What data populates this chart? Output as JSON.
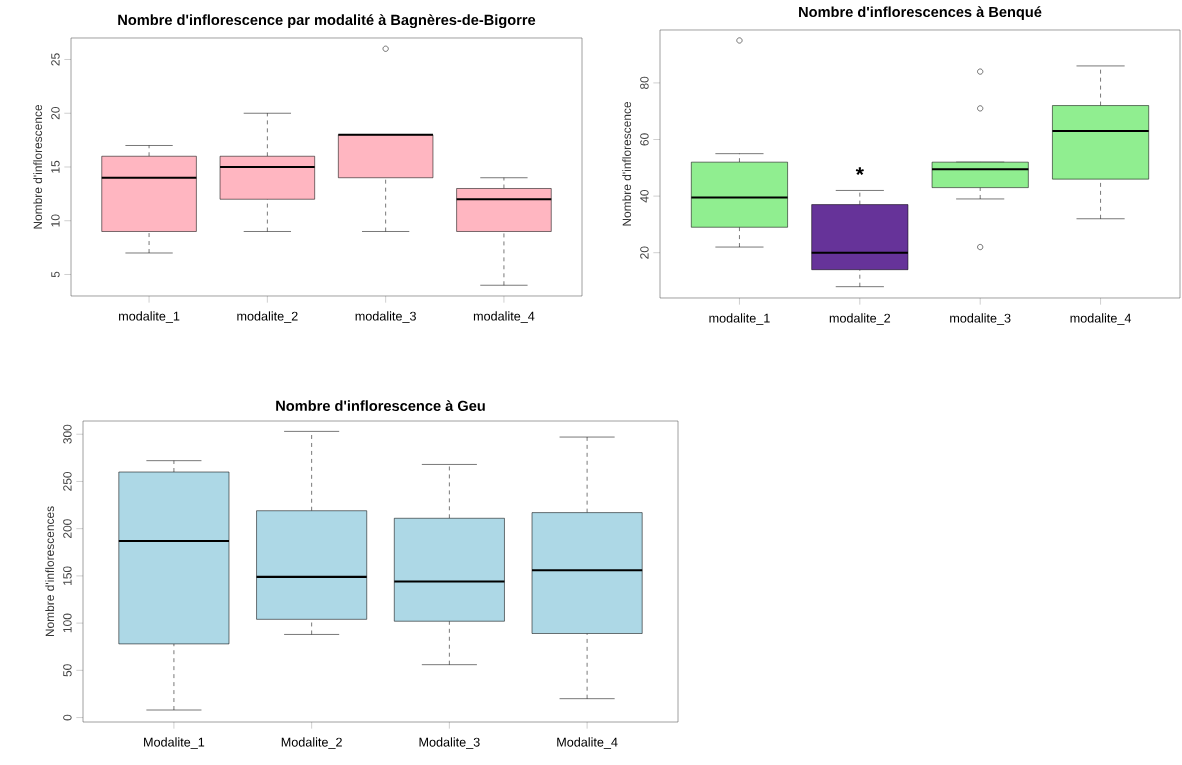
{
  "chart_data": [
    {
      "type": "box",
      "title": "Nombre d'inflorescence par modalité à Bagnères-de-Bigorre",
      "ylabel": "Nombre d'inflorescence",
      "categories": [
        "modalite_1",
        "modalite_2",
        "modalite_3",
        "modalite_4"
      ],
      "boxes": [
        {
          "low": 7,
          "q1": 9,
          "median": 14,
          "q3": 16,
          "high": 17
        },
        {
          "low": 9,
          "q1": 12,
          "median": 15,
          "q3": 16,
          "high": 20
        },
        {
          "low": 9,
          "q1": 14,
          "median": 18,
          "q3": 18,
          "high": 18,
          "outliers": [
            26
          ]
        },
        {
          "low": 4,
          "q1": 9,
          "median": 12,
          "q3": 13,
          "high": 14
        }
      ],
      "colors": [
        "#ffb6c1",
        "#ffb6c1",
        "#ffb6c1",
        "#ffb6c1"
      ],
      "ylim": [
        3,
        27
      ],
      "yticks": [
        5,
        10,
        15,
        20,
        25
      ]
    },
    {
      "type": "box",
      "title": "Nombre d'inflorescences à Benqué",
      "ylabel": "Nombre d'inflorescence",
      "categories": [
        "modalite_1",
        "modalite_2",
        "modalite_3",
        "modalite_4"
      ],
      "boxes": [
        {
          "low": 22,
          "q1": 29,
          "median": 39.5,
          "q3": 52,
          "high": 55,
          "outliers": [
            95
          ]
        },
        {
          "low": 8,
          "q1": 14,
          "median": 20,
          "q3": 37,
          "high": 42
        },
        {
          "low": 39,
          "q1": 43,
          "median": 49.5,
          "q3": 52,
          "high": 52,
          "outliers": [
            84,
            71,
            22
          ]
        },
        {
          "low": 32,
          "q1": 46,
          "median": 63,
          "q3": 72,
          "high": 86
        }
      ],
      "colors": [
        "#90ee90",
        "#663399",
        "#90ee90",
        "#90ee90"
      ],
      "annotations": [
        "*"
      ],
      "ylim": [
        4,
        98.7
      ],
      "yticks": [
        20,
        40,
        60,
        80
      ]
    },
    {
      "type": "box",
      "title": "Nombre d'inflorescence à Geu",
      "ylabel": "Nombre d'inflorescences",
      "categories": [
        "Modalite_1",
        "Modalite_2",
        "Modalite_3",
        "Modalite_4"
      ],
      "boxes": [
        {
          "low": 8,
          "q1": 78,
          "median": 187,
          "q3": 260,
          "high": 272
        },
        {
          "low": 88,
          "q1": 104,
          "median": 149,
          "q3": 219,
          "high": 303
        },
        {
          "low": 56,
          "q1": 102,
          "median": 144,
          "q3": 211,
          "high": 268
        },
        {
          "low": 20,
          "q1": 89,
          "median": 156,
          "q3": 217,
          "high": 297
        }
      ],
      "colors": [
        "#add8e6",
        "#add8e6",
        "#add8e6",
        "#add8e6"
      ],
      "ylim": [
        -4.7,
        314
      ],
      "yticks": [
        0,
        50,
        100,
        150,
        200,
        250,
        300
      ]
    }
  ]
}
